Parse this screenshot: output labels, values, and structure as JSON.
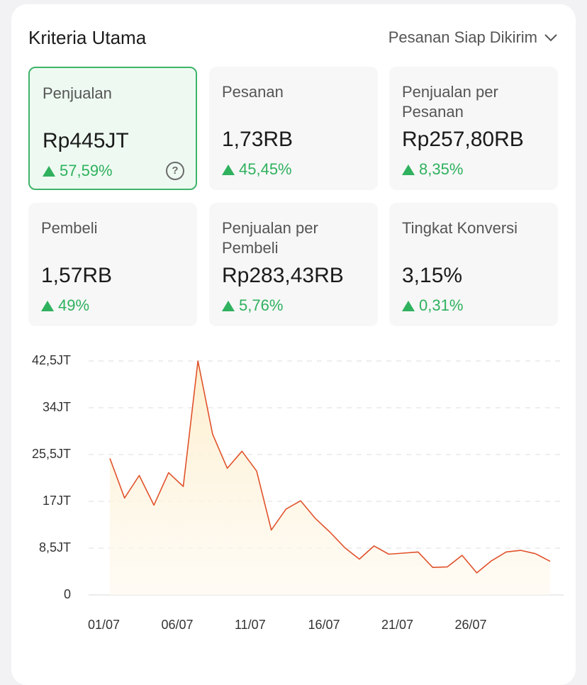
{
  "header": {
    "title": "Kriteria Utama",
    "dropdown_label": "Pesanan Siap Dikirim"
  },
  "metrics": [
    {
      "label": "Penjualan",
      "value": "Rp445JT",
      "change": "57,59%",
      "active": true
    },
    {
      "label": "Pesanan",
      "value": "1,73RB",
      "change": "45,45%"
    },
    {
      "label": "Penjualan per Pesanan",
      "value": "Rp257,80RB",
      "change": "8,35%"
    },
    {
      "label": "Pembeli",
      "value": "1,57RB",
      "change": "49%"
    },
    {
      "label": "Penjualan per Pembeli",
      "value": "Rp283,43RB",
      "change": "5,76%"
    },
    {
      "label": "Tingkat Konversi",
      "value": "3,15%",
      "change": "0,31%"
    }
  ],
  "help_symbol": "?",
  "colors": {
    "positive": "#2fb15e",
    "active_border": "#3fb36a",
    "line": "#e0522b",
    "area": "#fff3dc"
  },
  "chart_data": {
    "type": "area",
    "y_tick_labels": [
      "42,5JT",
      "34JT",
      "25,5JT",
      "17JT",
      "8,5JT",
      "0"
    ],
    "ylim": [
      0,
      42.5
    ],
    "y_unit": "JT",
    "x_tick_labels": [
      "01/07",
      "06/07",
      "11/07",
      "16/07",
      "21/07",
      "26/07"
    ],
    "x": [
      "01/07",
      "02/07",
      "03/07",
      "04/07",
      "05/07",
      "06/07",
      "07/07",
      "08/07",
      "09/07",
      "10/07",
      "11/07",
      "12/07",
      "13/07",
      "14/07",
      "15/07",
      "16/07",
      "17/07",
      "18/07",
      "19/07",
      "20/07",
      "21/07",
      "22/07",
      "23/07",
      "24/07",
      "25/07",
      "26/07",
      "27/07",
      "28/07",
      "29/07",
      "30/07",
      "31/07"
    ],
    "values": [
      24.8,
      17.6,
      21.7,
      16.3,
      22.2,
      19.7,
      42.5,
      29.2,
      23.0,
      26.1,
      22.5,
      11.8,
      15.6,
      17.1,
      13.9,
      11.4,
      8.6,
      6.5,
      8.9,
      7.4,
      7.6,
      7.8,
      5.0,
      5.1,
      7.2,
      4.0,
      6.2,
      7.8,
      8.1,
      7.5,
      6.1
    ],
    "grid": true
  }
}
